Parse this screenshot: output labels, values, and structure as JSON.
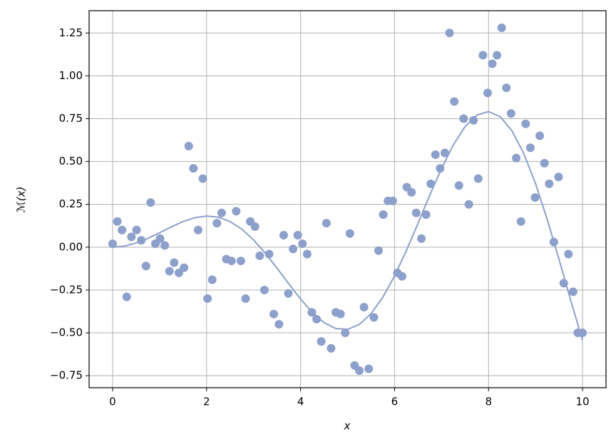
{
  "chart_data": {
    "type": "scatter",
    "xlabel": "x",
    "ylabel": "ℳ(x)",
    "xlim": [
      -0.5,
      10.5
    ],
    "ylim": [
      -0.82,
      1.38
    ],
    "xticks": [
      0,
      2,
      4,
      6,
      8,
      10
    ],
    "yticks": [
      {
        "value": -0.75,
        "label": "−0.75"
      },
      {
        "value": -0.5,
        "label": "−0.50"
      },
      {
        "value": -0.25,
        "label": "−0.25"
      },
      {
        "value": 0,
        "label": "0.00"
      },
      0.25,
      {
        "value": 0.5,
        "label": "0.50"
      },
      {
        "value": 0.75,
        "label": "0.75"
      },
      {
        "value": 1,
        "label": "1.00"
      },
      {
        "value": 1.25,
        "label": "1.25"
      }
    ],
    "grid": true,
    "series": [
      {
        "type": "scatter",
        "color": "#8da0cb",
        "x": [
          0,
          0.1,
          0.2,
          0.3,
          0.4,
          0.51,
          0.61,
          0.71,
          0.81,
          0.91,
          1.01,
          1.11,
          1.21,
          1.31,
          1.41,
          1.52,
          1.62,
          1.72,
          1.82,
          1.92,
          2.02,
          2.12,
          2.22,
          2.32,
          2.42,
          2.53,
          2.63,
          2.73,
          2.83,
          2.93,
          3.03,
          3.13,
          3.23,
          3.33,
          3.43,
          3.54,
          3.64,
          3.74,
          3.84,
          3.94,
          4.04,
          4.14,
          4.24,
          4.34,
          4.44,
          4.55,
          4.65,
          4.75,
          4.85,
          4.95,
          5.05,
          5.15,
          5.25,
          5.35,
          5.45,
          5.56,
          5.66,
          5.76,
          5.86,
          5.96,
          6.06,
          6.16,
          6.26,
          6.36,
          6.46,
          6.57,
          6.67,
          6.77,
          6.87,
          6.97,
          7.07,
          7.17,
          7.27,
          7.37,
          7.47,
          7.58,
          7.68,
          7.78,
          7.88,
          7.98,
          8.08,
          8.18,
          8.28,
          8.38,
          8.48,
          8.59,
          8.69,
          8.79,
          8.89,
          8.99,
          9.09,
          9.19,
          9.29,
          9.39,
          9.49,
          9.6,
          9.7,
          9.8,
          9.9,
          10
        ],
        "values": [
          0.02,
          0.15,
          0.1,
          -0.29,
          0.06,
          0.1,
          0.04,
          -0.11,
          0.26,
          0.02,
          0.05,
          0.01,
          -0.14,
          -0.09,
          -0.15,
          -0.12,
          0.59,
          0.46,
          0.1,
          0.4,
          -0.3,
          -0.19,
          0.14,
          0.2,
          -0.07,
          -0.08,
          0.21,
          -0.08,
          -0.3,
          0.15,
          0.12,
          -0.05,
          -0.25,
          -0.04,
          -0.39,
          -0.45,
          0.07,
          -0.27,
          -0.01,
          0.07,
          0.02,
          -0.04,
          -0.38,
          -0.42,
          -0.55,
          0.14,
          -0.59,
          -0.38,
          -0.39,
          -0.5,
          0.08,
          -0.69,
          -0.72,
          -0.35,
          -0.71,
          -0.41,
          -0.02,
          0.19,
          0.27,
          0.27,
          -0.15,
          -0.17,
          0.35,
          0.32,
          0.2,
          0.05,
          0.19,
          0.37,
          0.54,
          0.46,
          0.55,
          1.25,
          0.85,
          0.36,
          0.75,
          0.25,
          0.74,
          0.4,
          1.12,
          0.9,
          1.07,
          1.12,
          1.28,
          0.93,
          0.78,
          0.52,
          0.15,
          0.72,
          0.58,
          0.29,
          0.65,
          0.49,
          0.37,
          0.03,
          0.41,
          -0.21,
          -0.04,
          -0.26,
          -0.5,
          -0.5
        ]
      },
      {
        "type": "line",
        "color": "#8da0cb",
        "x": [
          0,
          0.25,
          0.5,
          0.75,
          1,
          1.25,
          1.5,
          1.75,
          2,
          2.25,
          2.5,
          2.75,
          3,
          3.25,
          3.5,
          3.75,
          4,
          4.25,
          4.5,
          4.75,
          5,
          5.25,
          5.5,
          5.75,
          6,
          6.25,
          6.5,
          6.75,
          7,
          7.25,
          7.5,
          7.75,
          8,
          8.25,
          8.5,
          8.75,
          9,
          9.25,
          9.5,
          9.75,
          10
        ],
        "values": [
          0,
          0.0062,
          0.024,
          0.0511,
          0.0841,
          0.1186,
          0.1496,
          0.1722,
          0.1819,
          0.1751,
          0.1496,
          0.105,
          0.0423,
          -0.0352,
          -0.1228,
          -0.2144,
          -0.3027,
          -0.3804,
          -0.4399,
          -0.4747,
          -0.4795,
          -0.4509,
          -0.388,
          -0.2923,
          -0.1676,
          -0.0207,
          0.1398,
          0.3038,
          0.4599,
          0.5967,
          0.7035,
          0.7708,
          0.7915,
          0.7613,
          0.6787,
          0.5466,
          0.3709,
          0.1612,
          -0.0714,
          -0.3115,
          -0.544
        ]
      }
    ]
  }
}
